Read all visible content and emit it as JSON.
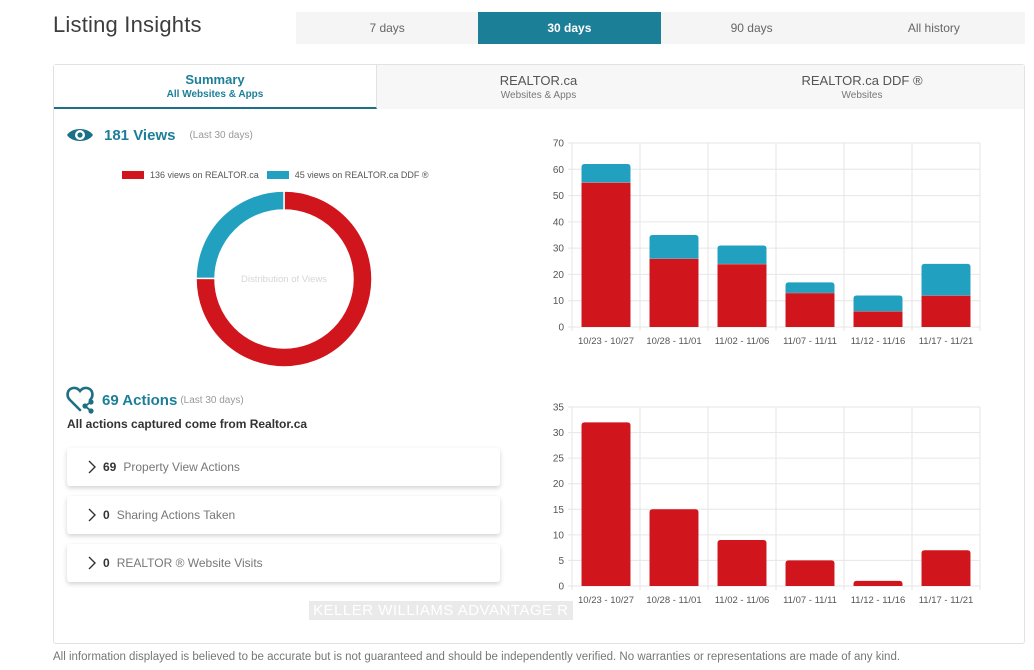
{
  "page": {
    "title": "Listing Insights",
    "footer": "All information displayed is believed to be accurate but is not guaranteed and should be independently verified. No warranties or representations are made of any kind.",
    "watermark": "KELLER WILLIAMS ADVANTAGE R"
  },
  "periods": [
    {
      "label": "7 days",
      "active": false
    },
    {
      "label": "30 days",
      "active": true
    },
    {
      "label": "90 days",
      "active": false
    },
    {
      "label": "All history",
      "active": false
    }
  ],
  "tabs": [
    {
      "title": "Summary",
      "subtitle": "All Websites & Apps",
      "active": true
    },
    {
      "title": "REALTOR.ca",
      "subtitle": "Websites & Apps",
      "active": false
    },
    {
      "title": "REALTOR.ca DDF ®",
      "subtitle": "Websites",
      "active": false
    }
  ],
  "views": {
    "icon": "eye-icon",
    "count_label": "181 Views",
    "period_note": "(Last 30 days)"
  },
  "actions": {
    "icon": "heart-share-icon",
    "count_label": "69 Actions",
    "period_note": "(Last 30 days)",
    "note": "All actions captured come from Realtor.ca",
    "items": [
      {
        "count": "69",
        "label": "Property View Actions"
      },
      {
        "count": "0",
        "label": "Sharing Actions Taken"
      },
      {
        "count": "0",
        "label": "REALTOR ® Website Visits"
      }
    ]
  },
  "colors": {
    "accent": "#1c7f98",
    "realtor": "#d0161c",
    "ddf": "#22a0c0"
  },
  "chart_data": [
    {
      "type": "pie",
      "title": "Distribution of Views",
      "legend": [
        "136 views on REALTOR.ca",
        "45 views on REALTOR.ca DDF ®"
      ],
      "values": [
        136,
        45
      ],
      "legend_position": "top"
    },
    {
      "type": "bar",
      "stacked": true,
      "categories": [
        "10/23 - 10/27",
        "10/28 - 11/01",
        "11/02 - 11/06",
        "11/07 - 11/11",
        "11/12 - 11/16",
        "11/17 - 11/21"
      ],
      "series": [
        {
          "name": "REALTOR.ca",
          "values": [
            55,
            26,
            24,
            13,
            6,
            12
          ]
        },
        {
          "name": "REALTOR.ca DDF ®",
          "values": [
            7,
            9,
            7,
            4,
            6,
            12
          ]
        }
      ],
      "ylim": [
        0,
        70
      ],
      "yticks": [
        "0",
        "10",
        "20",
        "30",
        "40",
        "50",
        "60",
        "70"
      ],
      "grid": true
    },
    {
      "type": "bar",
      "categories": [
        "10/23 - 10/27",
        "10/28 - 11/01",
        "11/02 - 11/06",
        "11/07 - 11/11",
        "11/12 - 11/16",
        "11/17 - 11/21"
      ],
      "series": [
        {
          "name": "Actions",
          "values": [
            32,
            15,
            9,
            5,
            1,
            7
          ]
        }
      ],
      "ylim": [
        0,
        35
      ],
      "yticks": [
        "0",
        "5",
        "10",
        "15",
        "20",
        "25",
        "30",
        "35"
      ],
      "grid": true
    }
  ]
}
